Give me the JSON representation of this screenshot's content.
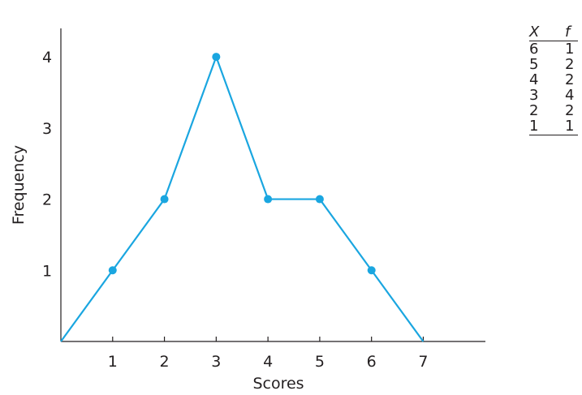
{
  "chart_data": {
    "type": "line",
    "title": "",
    "xlabel": "Scores",
    "ylabel": "Frequency",
    "x_ticks": [
      1,
      2,
      3,
      4,
      5,
      6,
      7
    ],
    "y_ticks": [
      1,
      2,
      3,
      4
    ],
    "xlim": [
      0,
      8.2
    ],
    "ylim": [
      0,
      4.4
    ],
    "grid": false,
    "series": [
      {
        "x": [
          0,
          1,
          2,
          3,
          4,
          5,
          6,
          7
        ],
        "y": [
          0,
          1,
          2,
          4,
          2,
          2,
          1,
          0
        ],
        "marker_x": [
          1,
          2,
          3,
          4,
          5,
          6
        ],
        "color": "#1aa6e0"
      }
    ]
  },
  "table": {
    "headers": [
      "X",
      "f"
    ],
    "rows": [
      [
        "6",
        "1"
      ],
      [
        "5",
        "2"
      ],
      [
        "4",
        "2"
      ],
      [
        "3",
        "4"
      ],
      [
        "2",
        "2"
      ],
      [
        "1",
        "1"
      ]
    ]
  }
}
